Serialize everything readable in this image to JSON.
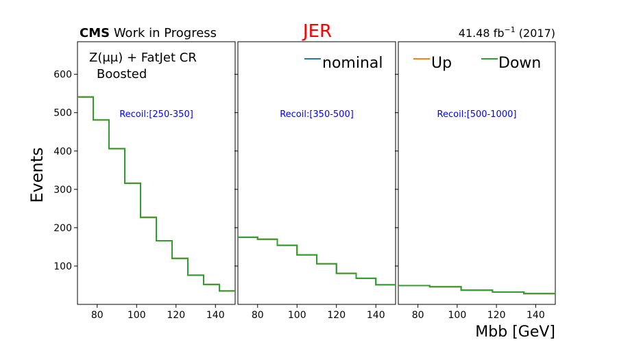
{
  "header": {
    "cms_bold": "CMS",
    "cms_rest": " Work in Progress",
    "title": "JER",
    "title_color": "#ff0000",
    "lumi_prefix": "41.48 fb",
    "lumi_exp": "−1",
    "lumi_suffix": " (2017)"
  },
  "annotation": {
    "region_line1": "Z(μμ) + FatJet CR",
    "region_line2": "Boosted",
    "recoil_color": "#0000ff"
  },
  "legend": {
    "nominal": "nominal",
    "up": "Up",
    "down": "Down"
  },
  "colors": {
    "nominal": "#1f77b4",
    "up": "#ff7f0e",
    "down": "#2ca02c"
  },
  "chart_data": {
    "type": "histogram-step",
    "xlabel": "Mbb [GeV]",
    "ylabel": "Events",
    "ylim": [
      0,
      685
    ],
    "yticks": [
      100,
      200,
      300,
      400,
      500,
      600
    ],
    "panels": [
      {
        "recoil_label": "Recoil:[250-350]",
        "xlim": [
          70,
          150
        ],
        "xticks": [
          80,
          100,
          120,
          140
        ],
        "bin_edges": [
          70,
          78,
          86,
          94,
          102,
          110,
          118,
          126,
          134,
          142,
          150
        ],
        "series": [
          {
            "name": "nominal",
            "values": [
              541,
              481,
              406,
              316,
              227,
              166,
              120,
              76,
              52,
              35
            ]
          },
          {
            "name": "Up",
            "values": [
              541,
              481,
              406,
              316,
              227,
              166,
              120,
              76,
              52,
              35
            ]
          },
          {
            "name": "Down",
            "values": [
              541,
              481,
              406,
              316,
              227,
              166,
              120,
              76,
              52,
              35
            ]
          }
        ]
      },
      {
        "recoil_label": "Recoil:[350-500]",
        "xlim": [
          70,
          150
        ],
        "xticks": [
          80,
          100,
          120,
          140
        ],
        "bin_edges": [
          70,
          80,
          90,
          100,
          110,
          120,
          130,
          140,
          150
        ],
        "series": [
          {
            "name": "nominal",
            "values": [
              175,
              170,
              154,
              129,
              106,
              81,
              68,
              51
            ]
          },
          {
            "name": "Up",
            "values": [
              175,
              170,
              154,
              129,
              106,
              81,
              68,
              51
            ]
          },
          {
            "name": "Down",
            "values": [
              175,
              170,
              154,
              129,
              106,
              81,
              68,
              51
            ]
          }
        ]
      },
      {
        "recoil_label": "Recoil:[500-1000]",
        "xlim": [
          70,
          150
        ],
        "xticks": [
          80,
          100,
          120,
          140
        ],
        "bin_edges": [
          70,
          86,
          102,
          118,
          134,
          150
        ],
        "series": [
          {
            "name": "nominal",
            "values": [
              49,
              46,
              37,
              32,
              28
            ]
          },
          {
            "name": "Up",
            "values": [
              49,
              46,
              37,
              32,
              28
            ]
          },
          {
            "name": "Down",
            "values": [
              49,
              46,
              37,
              32,
              28
            ]
          }
        ]
      }
    ]
  }
}
